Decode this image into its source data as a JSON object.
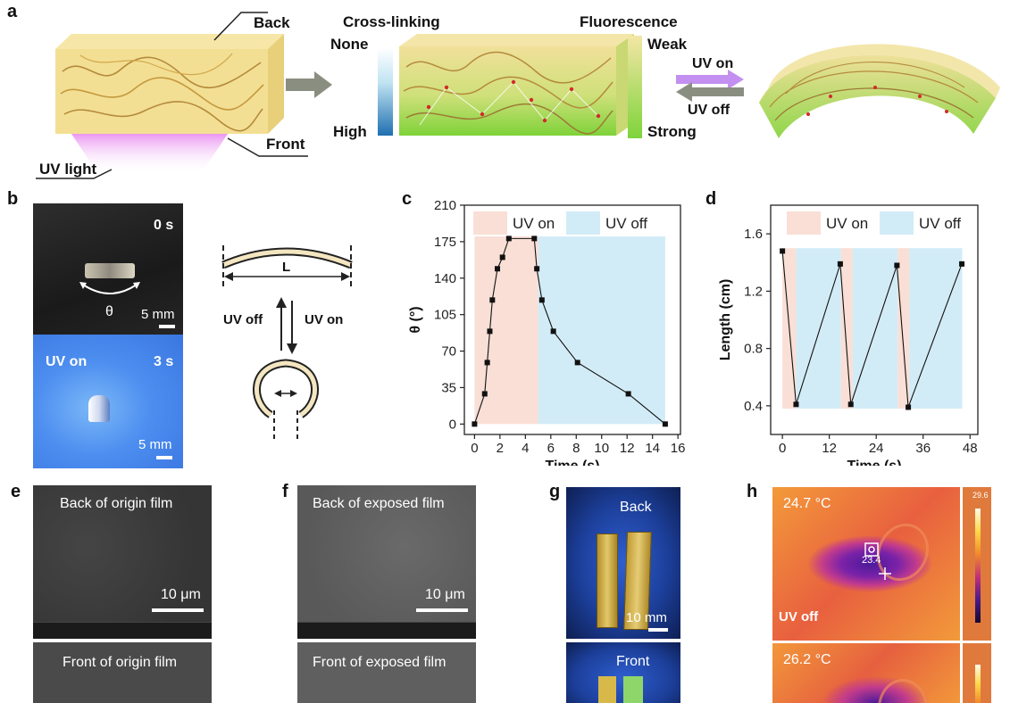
{
  "panel_a": {
    "letter": "a",
    "back": "Back",
    "front": "Front",
    "uv_light": "UV light",
    "cross_linking": "Cross-linking",
    "none": "None",
    "high": "High",
    "fluorescence": "Fluorescence",
    "weak": "Weak",
    "strong": "Strong",
    "uv_on": "UV on",
    "uv_off": "UV off"
  },
  "panel_b": {
    "letter": "b",
    "time_top": "0 s",
    "theta": "θ",
    "scale_top": "5 mm",
    "uv_on": "UV on",
    "time_bottom": "3 s",
    "scale_bottom": "5 mm",
    "length_label": "L",
    "uv_off": "UV off",
    "uv_on_right": "UV on"
  },
  "panel_c": {
    "letter": "c",
    "chart_data": {
      "type": "line",
      "xlabel": "Time (s)",
      "ylabel": "θ (°)",
      "xlim": [
        -0.8,
        16.2
      ],
      "ylim": [
        -10,
        210
      ],
      "xticks": [
        0,
        2,
        4,
        6,
        8,
        10,
        12,
        14,
        16
      ],
      "yticks": [
        0,
        35,
        70,
        105,
        140,
        175,
        210
      ],
      "legend": [
        "UV on",
        "UV off"
      ],
      "shaded_regions": [
        {
          "name": "UV on",
          "x": [
            0,
            5
          ],
          "y": [
            0,
            180
          ],
          "color": "#f9dfd6"
        },
        {
          "name": "UV off",
          "x": [
            5,
            15
          ],
          "y": [
            0,
            180
          ],
          "color": "#d2ecf7"
        }
      ],
      "x": [
        0,
        0.8,
        1.0,
        1.2,
        1.4,
        1.8,
        2.2,
        2.7,
        4.7,
        4.9,
        5.3,
        6.2,
        8.1,
        12.1,
        15
      ],
      "y": [
        0,
        29,
        59,
        89,
        119,
        149,
        160,
        178,
        178,
        149,
        119,
        89,
        59,
        29,
        0
      ]
    }
  },
  "panel_d": {
    "letter": "d",
    "chart_data": {
      "type": "line",
      "xlabel": "Time (s)",
      "ylabel": "Length (cm)",
      "xlim": [
        -3,
        50
      ],
      "ylim": [
        0.2,
        1.8
      ],
      "xticks": [
        0,
        12,
        24,
        36,
        48
      ],
      "yticks": [
        0.4,
        0.8,
        1.2,
        1.6
      ],
      "legend": [
        "UV on",
        "UV off"
      ],
      "shaded_regions": [
        {
          "name": "UV on",
          "x": [
            0,
            3.5
          ],
          "y": [
            0.38,
            1.5
          ],
          "color": "#f9dfd6"
        },
        {
          "name": "UV off",
          "x": [
            3.5,
            15
          ],
          "y": [
            0.38,
            1.5
          ],
          "color": "#d2ecf7"
        },
        {
          "name": "UV on",
          "x": [
            15,
            18
          ],
          "y": [
            0.38,
            1.5
          ],
          "color": "#f9dfd6"
        },
        {
          "name": "UV off",
          "x": [
            18,
            29.5
          ],
          "y": [
            0.38,
            1.5
          ],
          "color": "#d2ecf7"
        },
        {
          "name": "UV on",
          "x": [
            29.5,
            32.5
          ],
          "y": [
            0.38,
            1.5
          ],
          "color": "#f9dfd6"
        },
        {
          "name": "UV off",
          "x": [
            32.5,
            46
          ],
          "y": [
            0.38,
            1.5
          ],
          "color": "#d2ecf7"
        }
      ],
      "x": [
        0,
        3.5,
        14.8,
        17.5,
        29.3,
        32.2,
        45.9
      ],
      "y": [
        1.48,
        0.41,
        1.39,
        0.41,
        1.38,
        0.39,
        1.39
      ]
    }
  },
  "panel_e": {
    "letter": "e",
    "top_caption": "Back of origin film",
    "scale": "10 μm",
    "bottom_caption": "Front of origin film"
  },
  "panel_f": {
    "letter": "f",
    "top_caption": "Back of exposed film",
    "scale": "10 μm",
    "bottom_caption": "Front of exposed film"
  },
  "panel_g": {
    "letter": "g",
    "back": "Back",
    "scale": "10 mm",
    "front": "Front"
  },
  "panel_h": {
    "letter": "h",
    "temp_top": "24.7 °C",
    "spot_value": "23.4",
    "bar_max": "29.6",
    "uv_off": "UV off",
    "temp_bottom": "26.2 °C"
  }
}
